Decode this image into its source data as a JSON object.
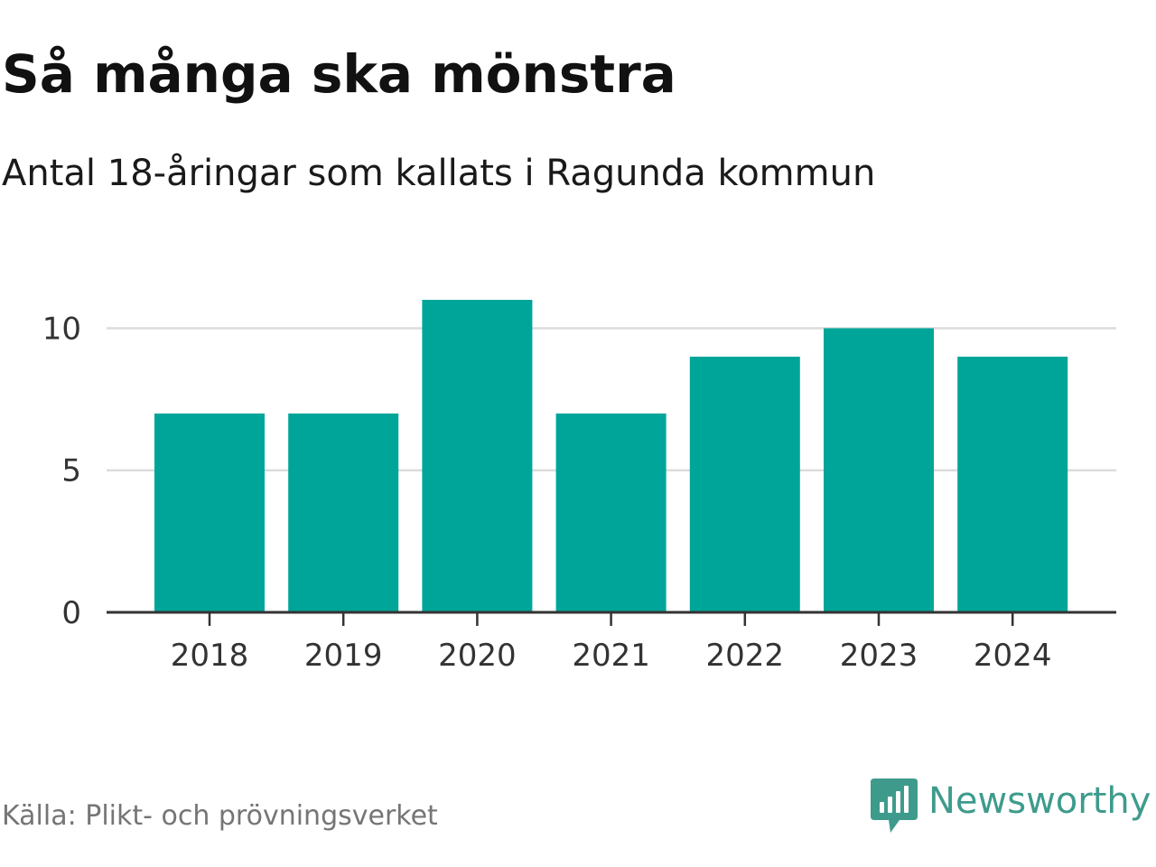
{
  "header": {
    "title": "Så många ska mönstra",
    "subtitle": "Antal 18-åringar som kallats i Ragunda kommun"
  },
  "footer": {
    "source": "Källa: Plikt- och prövningsverket",
    "brand": "Newsworthy"
  },
  "colors": {
    "bar": "#00a599",
    "grid": "#dcdcdc",
    "axis": "#333333",
    "brand": "#3e9b8c"
  },
  "icons": {
    "brand_logo": "newsworthy-logo-icon"
  },
  "chart_data": {
    "type": "bar",
    "categories": [
      "2018",
      "2019",
      "2020",
      "2021",
      "2022",
      "2023",
      "2024"
    ],
    "values": [
      7,
      7,
      11,
      7,
      9,
      10,
      9
    ],
    "title": "Så många ska mönstra",
    "subtitle": "Antal 18-åringar som kallats i Ragunda kommun",
    "xlabel": "",
    "ylabel": "",
    "ylim": [
      0,
      11
    ],
    "yticks": [
      0,
      5,
      10
    ],
    "ytick_labels": [
      "0",
      "5",
      "10"
    ],
    "grid": true,
    "legend": "none"
  }
}
